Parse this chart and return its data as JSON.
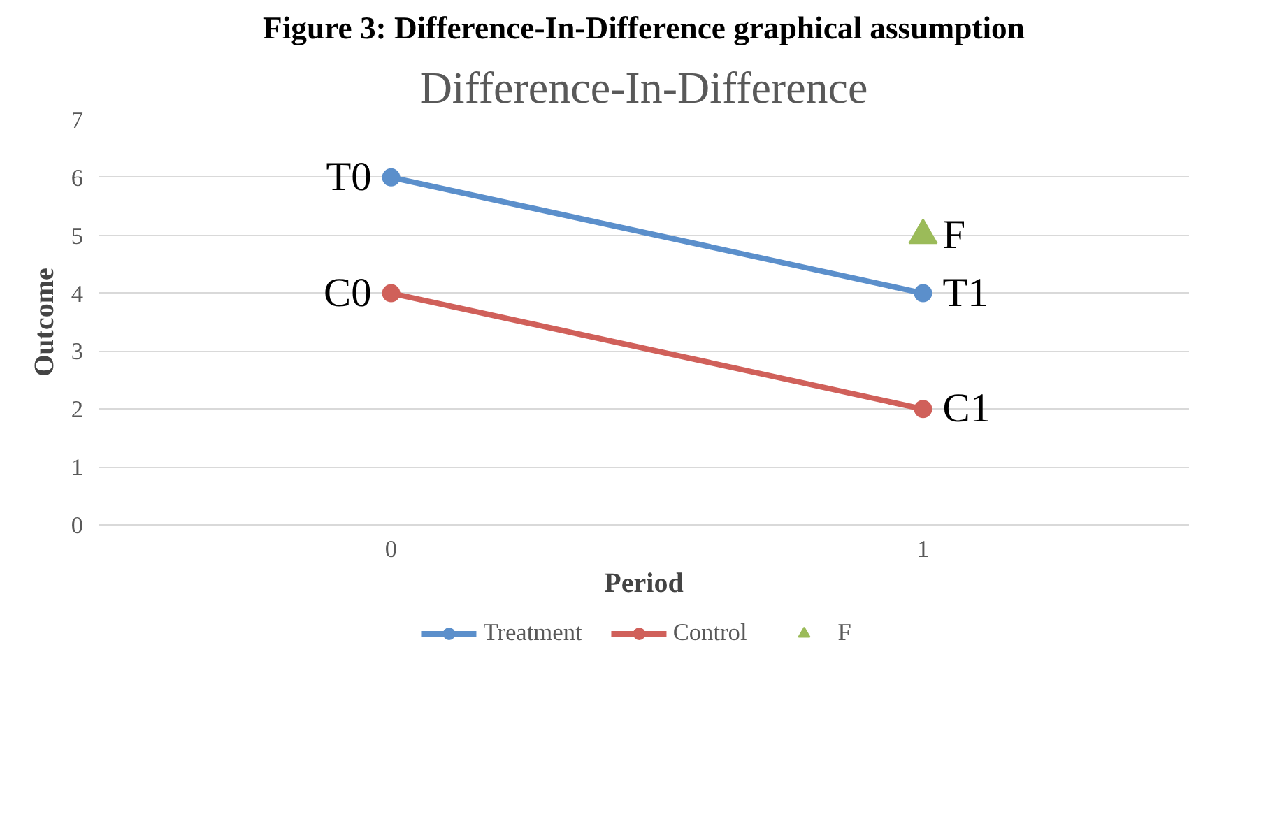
{
  "chart_data": {
    "type": "line",
    "title": "Figure 3: Difference-In-Difference graphical assumption",
    "subtitle": "Difference-In-Difference",
    "xlabel": "Period",
    "ylabel": "Outcome",
    "categories": [
      "0",
      "1"
    ],
    "series": [
      {
        "name": "Treatment",
        "color": "#5b8fcb",
        "values": [
          6,
          4
        ],
        "marker": "circle"
      },
      {
        "name": "Control",
        "color": "#d0605a",
        "values": [
          4,
          2
        ],
        "marker": "circle"
      },
      {
        "name": "F",
        "type": "scatter",
        "color": "#9bbb59",
        "values": [
          null,
          5
        ],
        "marker": "triangle"
      }
    ],
    "annotations": [
      {
        "text": "T0",
        "x": "0",
        "y": 6
      },
      {
        "text": "C0",
        "x": "0",
        "y": 4
      },
      {
        "text": "T1",
        "x": "1",
        "y": 4
      },
      {
        "text": "C1",
        "x": "1",
        "y": 2
      },
      {
        "text": "F",
        "x": "1",
        "y": 5
      }
    ],
    "ylim": [
      0,
      7
    ],
    "yticks": [
      0,
      1,
      2,
      3,
      4,
      5,
      6,
      7
    ],
    "grid": "y",
    "legend": "bottom"
  }
}
